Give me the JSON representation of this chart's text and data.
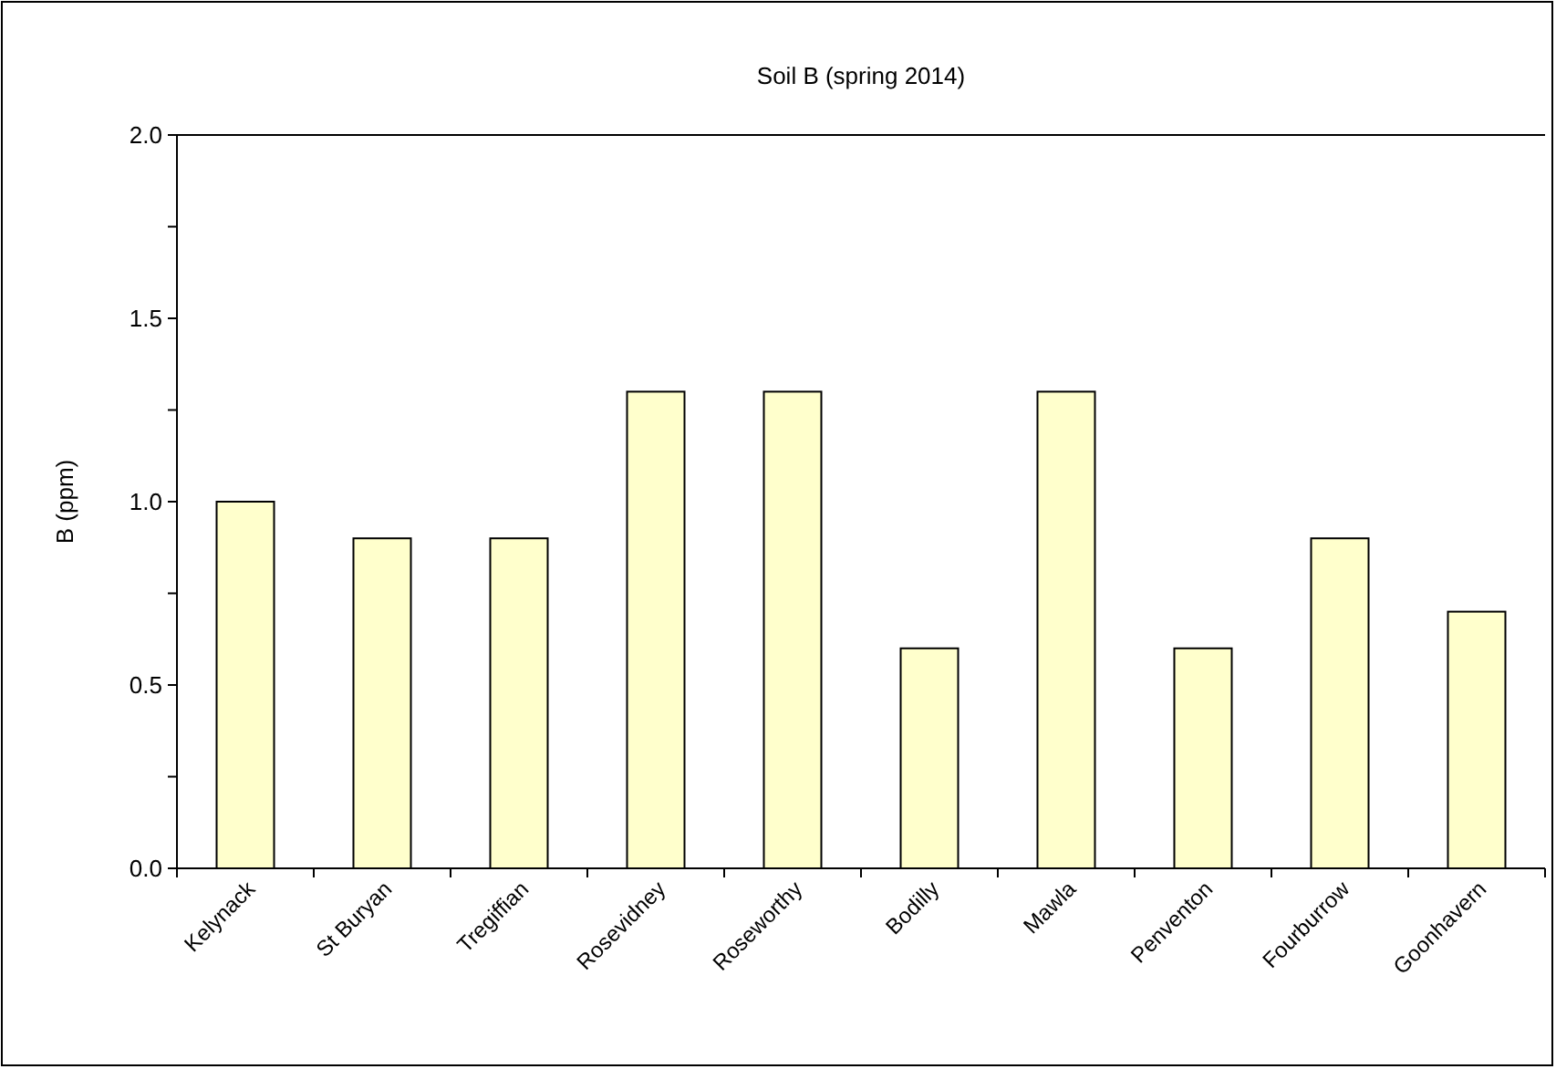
{
  "chart_data": {
    "type": "bar",
    "title": "Soil B (spring 2014)",
    "ylabel": "B (ppm)",
    "categories": [
      "Kelynack",
      "St Buryan",
      "Tregiffian",
      "Rosevidney",
      "Roseworthy",
      "Bodilly",
      "Mawla",
      "Penventon",
      "Fourburrow",
      "Goonhavern"
    ],
    "values": [
      1.0,
      0.9,
      0.9,
      1.3,
      1.3,
      0.6,
      1.3,
      0.6,
      0.9,
      0.7
    ],
    "color": "#ffffcc",
    "ylim": [
      0,
      2
    ],
    "yticks": [
      {
        "value": 0,
        "label": "0.0"
      },
      {
        "value": 0.25,
        "label": null
      },
      {
        "value": 0.5,
        "label": "0.5"
      },
      {
        "value": 0.75,
        "label": null
      },
      {
        "value": 1,
        "label": "1.0"
      },
      {
        "value": 1.25,
        "label": null
      },
      {
        "value": 1.5,
        "label": "1.5"
      },
      {
        "value": 1.75,
        "label": null
      },
      {
        "value": 2,
        "label": "2.0"
      }
    ],
    "grid": false
  }
}
